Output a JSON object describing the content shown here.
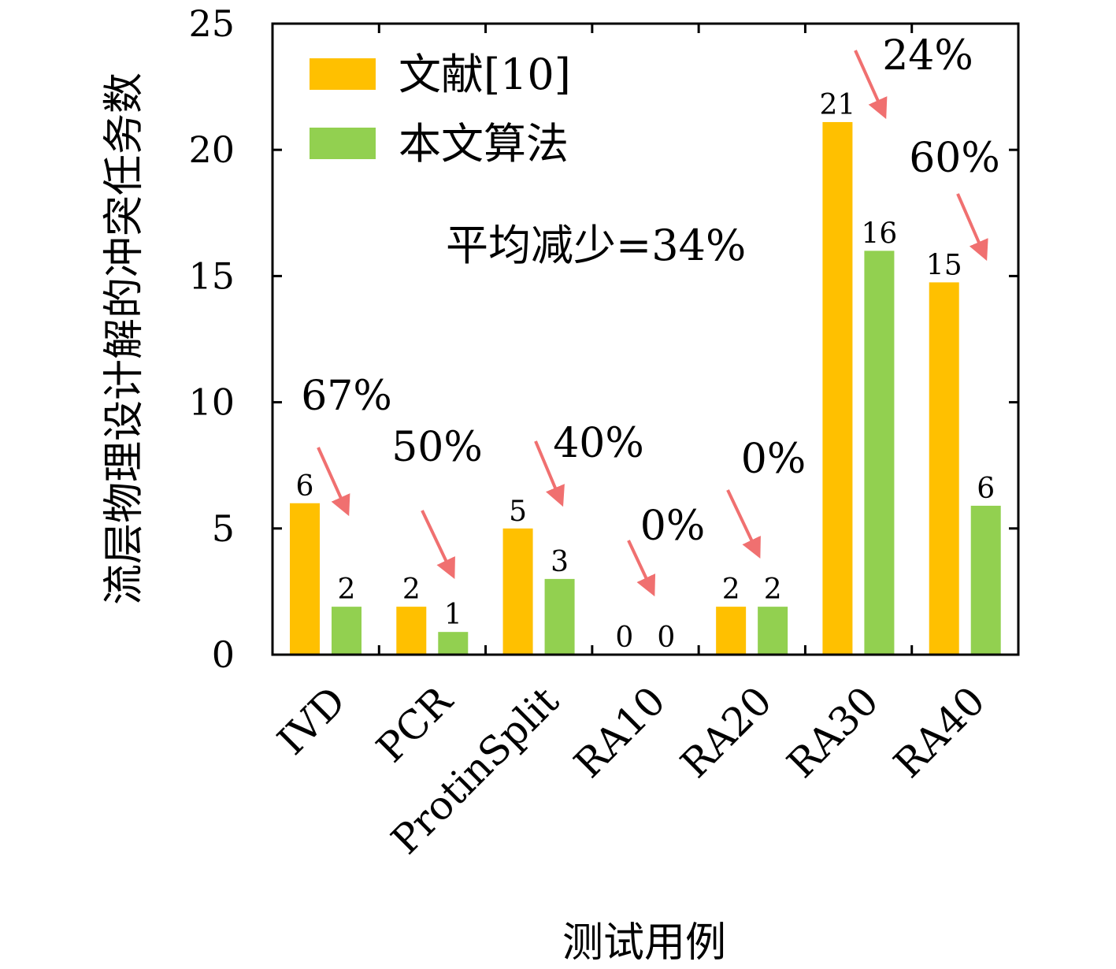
{
  "chart_data": {
    "type": "bar",
    "title": "",
    "xlabel": "测试用例",
    "ylabel": "流层物理设计解的冲突任务数",
    "ylim": [
      0,
      25
    ],
    "yticks": [
      0,
      5,
      10,
      15,
      20,
      25
    ],
    "grid": false,
    "legend": "top-left",
    "categories": [
      "IVD",
      "PCR",
      "ProtinSplit",
      "RA10",
      "RA20",
      "RA30",
      "RA40"
    ],
    "series": [
      {
        "name": "文献[10]",
        "color": "#FFC000",
        "values": [
          6,
          2,
          5,
          0,
          2,
          21,
          15
        ],
        "labels": [
          "6",
          "2",
          "5",
          "0",
          "2",
          "21",
          "15"
        ],
        "plotted": [
          6,
          1.9,
          5,
          0,
          1.9,
          21.1,
          14.75
        ]
      },
      {
        "name": "本文算法",
        "color": "#92D050",
        "values": [
          2,
          1,
          3,
          0,
          2,
          16,
          6
        ],
        "labels": [
          "2",
          "1",
          "3",
          "0",
          "2",
          "16",
          "6"
        ],
        "plotted": [
          1.9,
          0.9,
          3,
          0,
          1.9,
          16,
          5.9
        ]
      }
    ],
    "reductions": [
      "67%",
      "50%",
      "40%",
      "0%",
      "0%",
      "24%",
      "60%"
    ],
    "annotation": "平均减少=34%",
    "arrow_color": "#F07070"
  }
}
